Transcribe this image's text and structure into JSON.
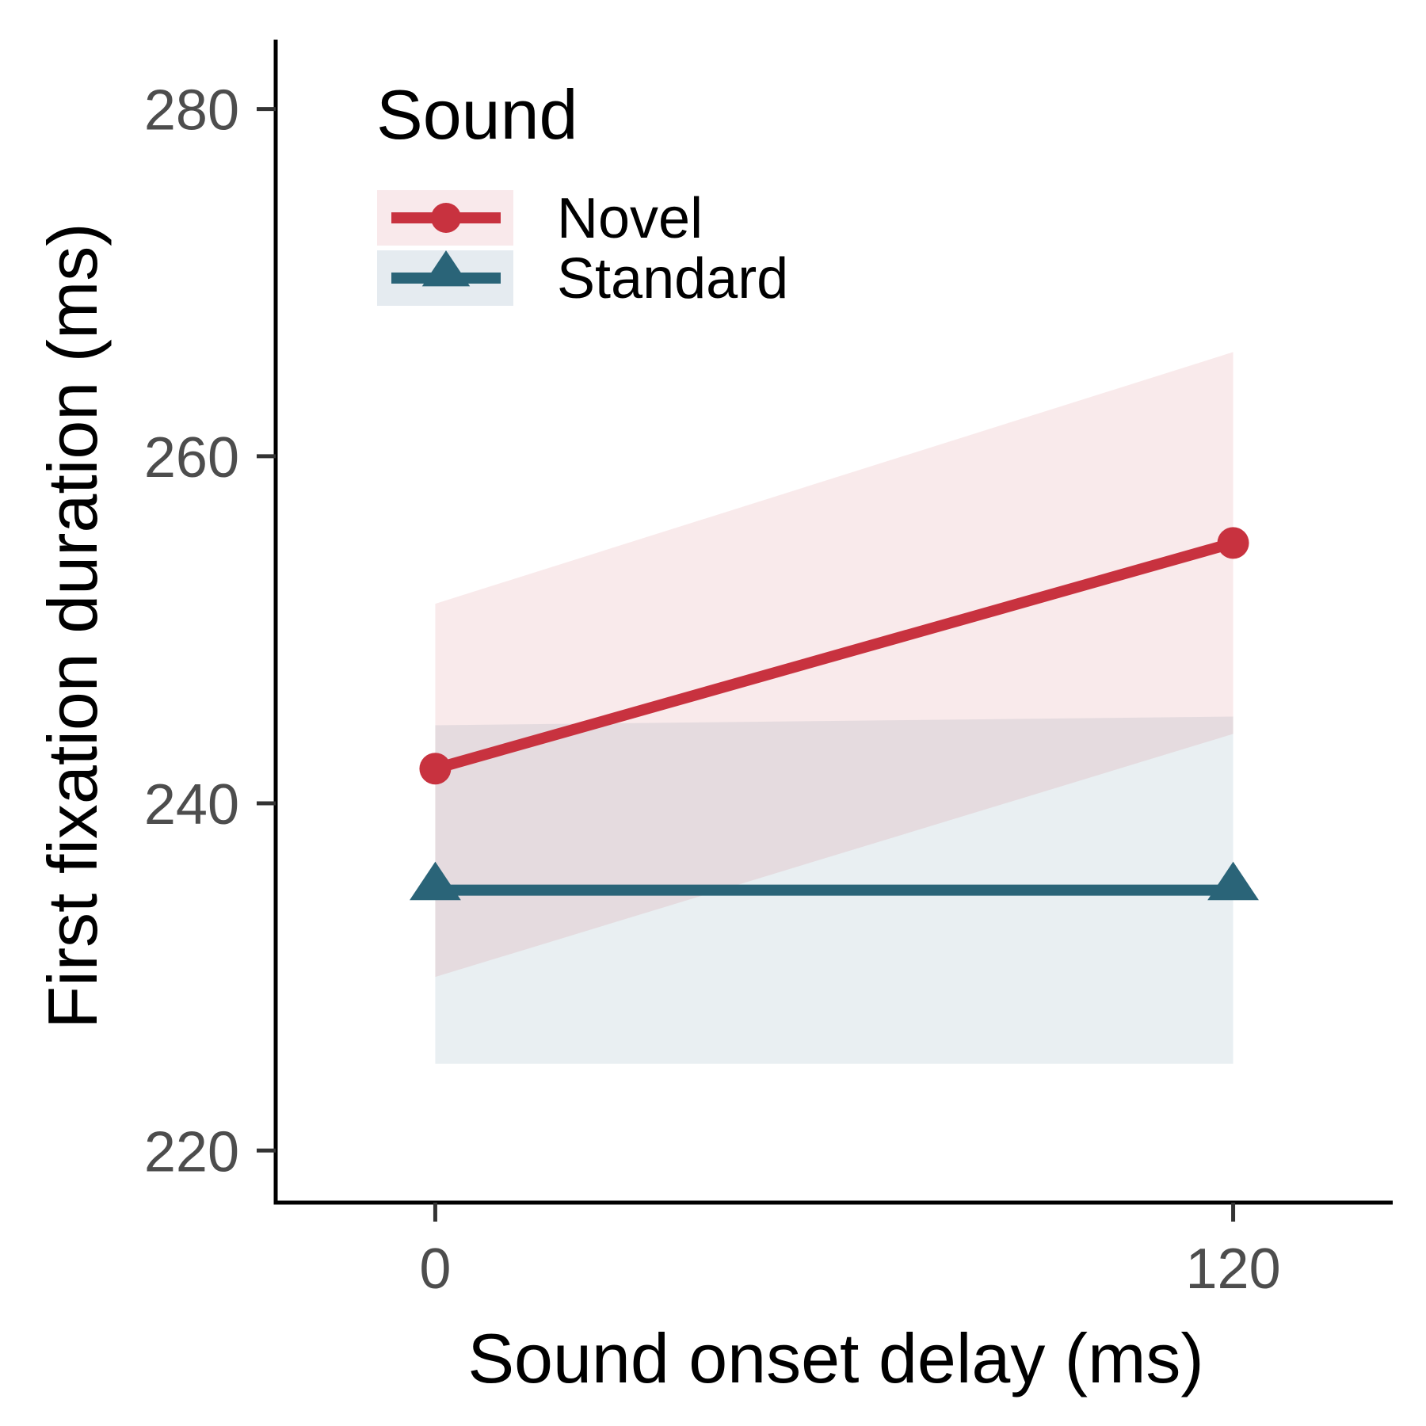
{
  "chart_data": {
    "type": "line",
    "xlabel": "Sound onset delay (ms)",
    "ylabel": "First fixation duration (ms)",
    "x": [
      0,
      120
    ],
    "xlim": [
      -24,
      144
    ],
    "x_ticks": [
      0,
      120
    ],
    "ylim": [
      217,
      284
    ],
    "y_ticks": [
      220,
      240,
      260,
      280
    ],
    "grid": false,
    "legend": {
      "title": "Sound",
      "position": "top-left"
    },
    "series": [
      {
        "name": "Novel",
        "values": [
          242,
          255
        ],
        "ci_lower": [
          230,
          244
        ],
        "ci_upper": [
          251.5,
          266
        ],
        "color": "#c8323f",
        "band_color": "#f9e8ea",
        "marker": "circle"
      },
      {
        "name": "Standard",
        "values": [
          235,
          235
        ],
        "ci_lower": [
          225,
          225
        ],
        "ci_upper": [
          244.5,
          245
        ],
        "color": "#2a6478",
        "band_color": "#e2e9ee",
        "marker": "triangle"
      }
    ]
  }
}
